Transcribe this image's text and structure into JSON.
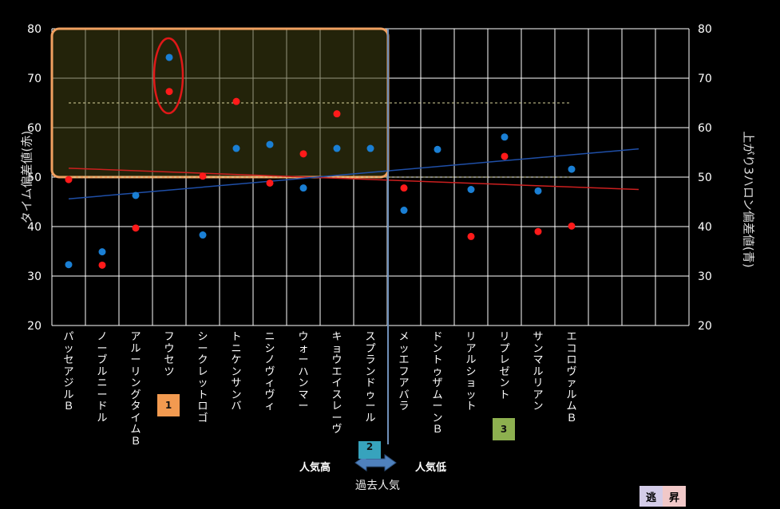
{
  "chart_data": {
    "type": "scatter",
    "categories": [
      "パッセアジルＢ",
      "ノーブルニードル",
      "アルーリングタイムＢ",
      "フウセツ",
      "シークレットロゴ",
      "トニケンサンバ",
      "ニシノヴィヴィ",
      "ウォーハンマー",
      "キョウエイスレーヴ",
      "スプランドゥール",
      "メッエフアバラ",
      "ドントゥザムーンＢ",
      "リアルショット",
      "リプレゼント",
      "サンマルリアン",
      "エコロヴァルムＢ"
    ],
    "ylabel_left": "タイム偏差値(赤)",
    "ylabel_right": "上がり3ハロン偏差値(青)",
    "ylim": [
      20,
      80
    ],
    "yticks": [
      20,
      30,
      40,
      50,
      60,
      70,
      80
    ],
    "series": [
      {
        "color": "#ff1a1a",
        "values": [
          49.5,
          32.2,
          39.7,
          67.3,
          50.2,
          65.3,
          48.8,
          54.7,
          62.8,
          null,
          47.8,
          null,
          38.0,
          54.2,
          39.0,
          40.1
        ]
      },
      {
        "color": "#1a7fd4",
        "values": [
          32.3,
          34.9,
          46.3,
          74.2,
          38.3,
          55.8,
          56.6,
          47.8,
          55.8,
          55.8,
          43.3,
          55.6,
          47.5,
          58.1,
          47.2,
          51.6
        ]
      }
    ],
    "trendlines": [
      {
        "color": "#cc1f1f",
        "from": 51.8,
        "to": 47.5
      },
      {
        "color": "#1f4fa8",
        "from": 45.6,
        "to": 55.7
      }
    ],
    "reference_lines": [
      {
        "value": 65,
        "color": "#d8d39a"
      },
      {
        "value": 50,
        "color": "#d8d39a"
      }
    ],
    "grid": true
  },
  "badges": [
    {
      "text": "1",
      "color": "#f29a50"
    },
    {
      "text": "2",
      "color": "#37a3bd"
    },
    {
      "text": "3",
      "color": "#8db04f"
    }
  ],
  "popularity": {
    "high": "人気高",
    "low": "人気低",
    "axis_title": "過去人気"
  },
  "bottom_tags": [
    {
      "text": "逃",
      "color": "#d4cce8"
    },
    {
      "text": "昇",
      "color": "#f1c8c8"
    }
  ]
}
